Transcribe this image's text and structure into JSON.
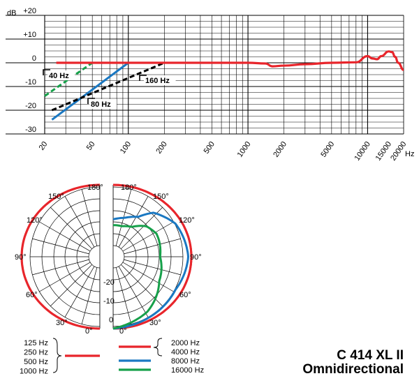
{
  "chart_data": [
    {
      "type": "line",
      "chart": "frequency-response",
      "ylabel": "dB",
      "xlabel": "Hz",
      "xscale": "log",
      "xlim": [
        20,
        20000
      ],
      "ylim": [
        -30,
        20
      ],
      "x_ticks": [
        20,
        50,
        100,
        200,
        500,
        1000,
        2000,
        5000,
        10000,
        15000,
        20000
      ],
      "y_ticks": [
        "+20",
        "+10",
        "0",
        "-10",
        "-20",
        "-30"
      ],
      "y_tick_values": [
        20,
        10,
        0,
        -10,
        -20,
        -30
      ],
      "grid": true,
      "colors": {
        "response": "#e8252b",
        "cut_40": "#16a04a",
        "cut_80": "#1a78c2",
        "cut_160": "#000000"
      },
      "series": [
        {
          "role": "response",
          "x": [
            25,
            40,
            100,
            200,
            500,
            1000,
            1400,
            1600,
            2000,
            3000,
            5000,
            8000,
            10000,
            11000,
            12000,
            13000,
            15000,
            16000,
            17000,
            18000,
            20000
          ],
          "y": [
            0,
            0,
            0,
            0,
            0,
            0,
            -0.3,
            -1.5,
            -1.2,
            -0.6,
            0,
            0.2,
            2.8,
            1.8,
            1.5,
            2.8,
            4.8,
            4.5,
            2.5,
            0,
            -3
          ]
        },
        {
          "role": "low-cut",
          "label": "40 Hz",
          "style": "dashed",
          "x": [
            20,
            50
          ],
          "y": [
            -14,
            0
          ]
        },
        {
          "role": "low-cut",
          "label": "80 Hz",
          "style": "solid",
          "x": [
            23,
            100
          ],
          "y": [
            -24,
            0
          ]
        },
        {
          "role": "low-cut",
          "label": "160 Hz",
          "style": "dashed",
          "x": [
            23,
            200
          ],
          "y": [
            -20,
            0
          ]
        }
      ]
    },
    {
      "type": "polar",
      "chart": "polar-pattern",
      "angle_labels": [
        "180°",
        "150°",
        "120°",
        "90°",
        "60°",
        "30°",
        "0°"
      ],
      "angle_values": [
        180,
        150,
        120,
        90,
        60,
        30,
        0
      ],
      "radial_labels": [
        "-20",
        "-10",
        "0"
      ],
      "radial_values": [
        -20,
        -10,
        0
      ],
      "rlim": [
        -25,
        0
      ],
      "left_half": {
        "bands": [
          "125 Hz",
          "250 Hz",
          "500 Hz",
          "1000 Hz"
        ],
        "color": "#e8252b",
        "series": [
          {
            "name": "125-1000 Hz",
            "angle": [
              0,
              30,
              60,
              90,
              120,
              150,
              180
            ],
            "db": [
              0,
              0,
              0,
              0,
              0,
              0,
              0
            ]
          }
        ]
      },
      "right_half": {
        "series": [
          {
            "name": "2000 Hz",
            "color": "#e8252b",
            "angle": [
              0,
              30,
              60,
              90,
              120,
              150,
              180
            ],
            "db": [
              0,
              0,
              0,
              0,
              0,
              0,
              0
            ]
          },
          {
            "name": "4000 Hz",
            "color": "#e8252b",
            "angle": [
              0,
              30,
              60,
              90,
              120,
              150,
              180
            ],
            "db": [
              0,
              0,
              0,
              0,
              0,
              0,
              0
            ]
          },
          {
            "name": "8000 Hz",
            "color": "#1a78c2",
            "angle": [
              0,
              30,
              60,
              90,
              120,
              140,
              150,
              165,
              180
            ],
            "db": [
              0,
              -1,
              -2,
              -1,
              -2,
              -5,
              -9,
              -11,
              -12
            ]
          },
          {
            "name": "16000 Hz",
            "color": "#16a04a",
            "angle": [
              0,
              30,
              60,
              90,
              120,
              135,
              150,
              165,
              180
            ],
            "db": [
              0,
              -3,
              -8,
              -10,
              -9,
              -10,
              -13,
              -14,
              -14
            ]
          }
        ]
      }
    }
  ],
  "product": {
    "model": "C 414 XL II",
    "pattern": "Omnidirectional"
  }
}
